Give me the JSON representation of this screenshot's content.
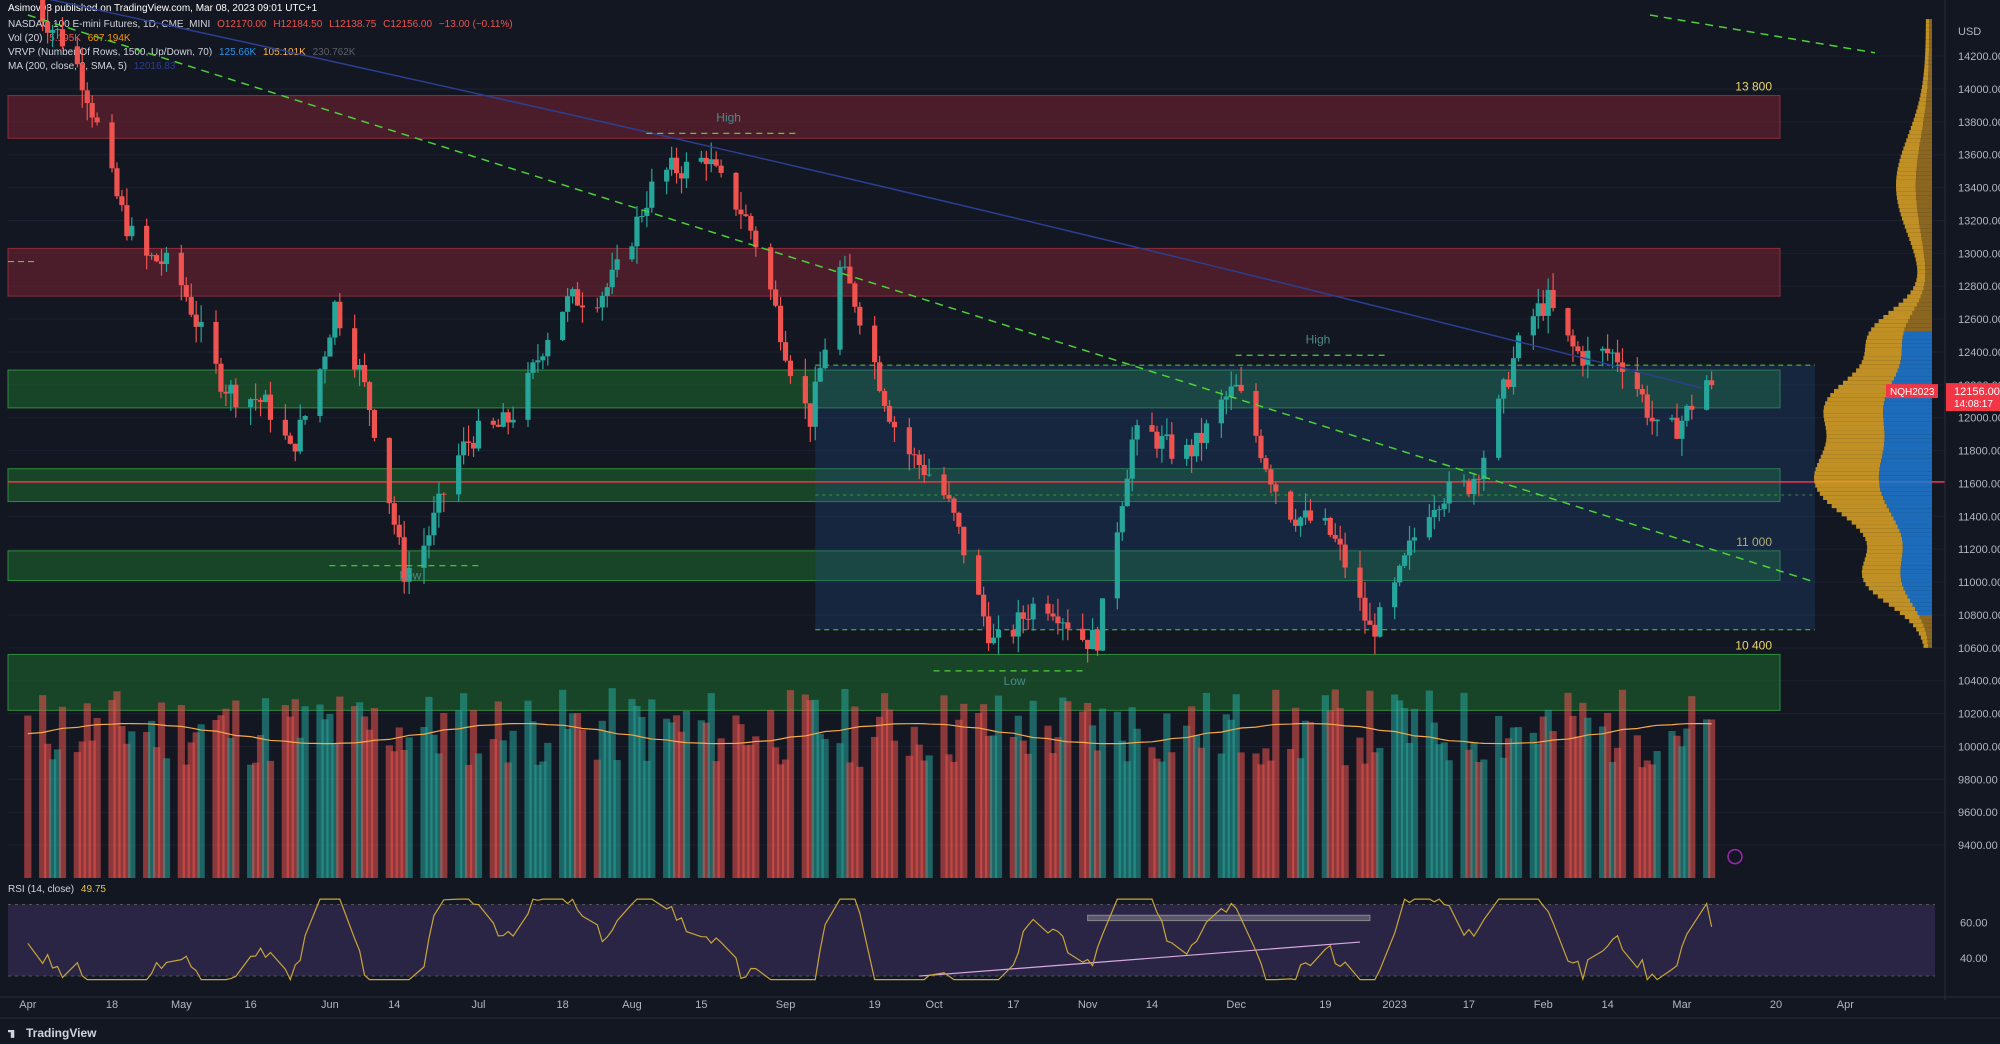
{
  "publisher": "Asimov93 published on TradingView.com, Mar 08, 2023 09:01 UTC+1",
  "indicators": {
    "symbol": "NASDAQ 100 E-mini Futures, 1D, CME_MINI",
    "ohlc": {
      "o": "O12170.00",
      "h": "H12184.50",
      "l": "L12138.75",
      "c": "C12156.00",
      "chg": "−13.00 (−0.11%)"
    },
    "vol": {
      "label": "Vol (20)",
      "v1": "5.195K",
      "v2": "607.194K"
    },
    "vrvp": {
      "label": "VRVP (Number Of Rows, 1500, Up/Down, 70)",
      "v1": "125.66K",
      "v2": "105.101K",
      "v3": "230.762K"
    },
    "ma": {
      "label": "MA (200, close, 0, SMA, 5)",
      "v1": "12016.83"
    },
    "rsi": {
      "label": "RSI (14, close)",
      "value": "49.75"
    }
  },
  "footer": "TradingView",
  "colors": {
    "bg": "#131722",
    "up": "#26a69a",
    "down": "#ef5350",
    "resistance": "#7a2331",
    "support": "#1e6b2e",
    "trend": "#4cd137",
    "ma": "#2c3e91",
    "rsi": "#c7a53a",
    "price_tag": "#f23645",
    "poc": "#f23645"
  },
  "chart_data": {
    "type": "candlestick",
    "symbol": "NQH2023",
    "price_axis": {
      "unit": "USD",
      "range": [
        9200,
        14450
      ],
      "ticks": [
        "14200.00",
        "14000.00",
        "13800.00",
        "13600.00",
        "13400.00",
        "13200.00",
        "13000.00",
        "12800.00",
        "12600.00",
        "12400.00",
        "12200.00",
        "12000.00",
        "11800.00",
        "11600.00",
        "11400.00",
        "11200.00",
        "11000.00",
        "10800.00",
        "10600.00",
        "10400.00",
        "10200.00",
        "10000.00",
        "9800.00",
        "9600.00",
        "9400.00"
      ]
    },
    "time_axis": [
      "Apr",
      "18",
      "May",
      "16",
      "Jun",
      "14",
      "Jul",
      "18",
      "Aug",
      "15",
      "Sep",
      "19",
      "Oct",
      "17",
      "Nov",
      "14",
      "Dec",
      "19",
      "2023",
      "17",
      "Feb",
      "14",
      "Mar",
      "20",
      "Apr"
    ],
    "last_price": {
      "label": "NQH2023",
      "price": "12156.00",
      "countdown": "14:08:17"
    },
    "zones": [
      {
        "kind": "resistance",
        "from": 13700,
        "to": 13960,
        "label": "13 800"
      },
      {
        "kind": "resistance",
        "from": 12740,
        "to": 13030,
        "label": ""
      },
      {
        "kind": "support",
        "from": 12060,
        "to": 12290,
        "label": ""
      },
      {
        "kind": "support",
        "from": 11490,
        "to": 11690,
        "label": ""
      },
      {
        "kind": "support",
        "from": 11010,
        "to": 11190,
        "label": "11 000"
      },
      {
        "kind": "support",
        "from": 10220,
        "to": 10560,
        "label": "10 400"
      }
    ],
    "range_box": {
      "from": 10710,
      "to": 12320,
      "label": ""
    },
    "red_line": 11610,
    "annotations": [
      {
        "text": "High",
        "price": 13730,
        "date": "2022-08-16"
      },
      {
        "text": "High",
        "price": 12380,
        "date": "2022-12-13"
      },
      {
        "text": "Low",
        "price": 11100,
        "date": "2022-06-13"
      },
      {
        "text": "Low",
        "price": 10460,
        "date": "2022-10-13"
      }
    ],
    "volume_axis": {
      "ticks": []
    },
    "rsi": {
      "value": 49.75,
      "levels": [
        70,
        30
      ],
      "ticks": [
        "60.00",
        "40.00"
      ],
      "range": [
        25,
        77
      ]
    },
    "candles_monthly_anchor": [
      {
        "date": "2022-04-01",
        "close": 14750
      },
      {
        "date": "2022-04-25",
        "close": 13000
      },
      {
        "date": "2022-05-24",
        "close": 11750
      },
      {
        "date": "2022-06-02",
        "close": 12750
      },
      {
        "date": "2022-06-16",
        "close": 11150
      },
      {
        "date": "2022-07-08",
        "close": 12150
      },
      {
        "date": "2022-08-16",
        "close": 13720
      },
      {
        "date": "2022-09-06",
        "close": 12100
      },
      {
        "date": "2022-09-12",
        "close": 12800
      },
      {
        "date": "2022-10-13",
        "close": 10750
      },
      {
        "date": "2022-11-03",
        "close": 10770
      },
      {
        "date": "2022-11-10",
        "close": 11750
      },
      {
        "date": "2022-12-01",
        "close": 12050
      },
      {
        "date": "2022-12-28",
        "close": 10800
      },
      {
        "date": "2023-01-17",
        "close": 11700
      },
      {
        "date": "2023-02-02",
        "close": 12700
      },
      {
        "date": "2023-02-24",
        "close": 12000
      },
      {
        "date": "2023-03-07",
        "close": 12156
      }
    ]
  }
}
